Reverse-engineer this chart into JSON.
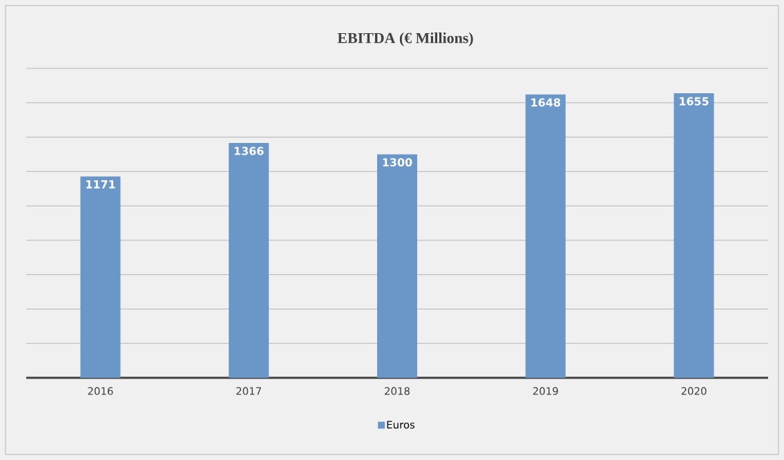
{
  "chart_data": {
    "type": "bar",
    "title": "EBITDA (€ Millions)",
    "categories": [
      "2016",
      "2017",
      "2018",
      "2019",
      "2020"
    ],
    "series": [
      {
        "name": "Euros",
        "color": "#6a96c8",
        "values": [
          1171,
          1366,
          1300,
          1648,
          1655
        ]
      }
    ],
    "ylim": [
      0,
      1800
    ],
    "yticks": [
      {
        "value": 0,
        "label": null
      },
      {
        "value": 200,
        "label": null
      },
      {
        "value": 400,
        "label": null
      },
      {
        "value": 600,
        "label": null
      },
      {
        "value": 800,
        "label": null
      },
      {
        "value": 1000,
        "label": null
      },
      {
        "value": 1200,
        "label": null
      },
      {
        "value": 1400,
        "label": null
      },
      {
        "value": 1600,
        "label": null
      },
      {
        "value": 1800,
        "label": null
      }
    ],
    "grid": "y",
    "legend": "bottom",
    "tick_labels": "x",
    "data_labels": true
  }
}
